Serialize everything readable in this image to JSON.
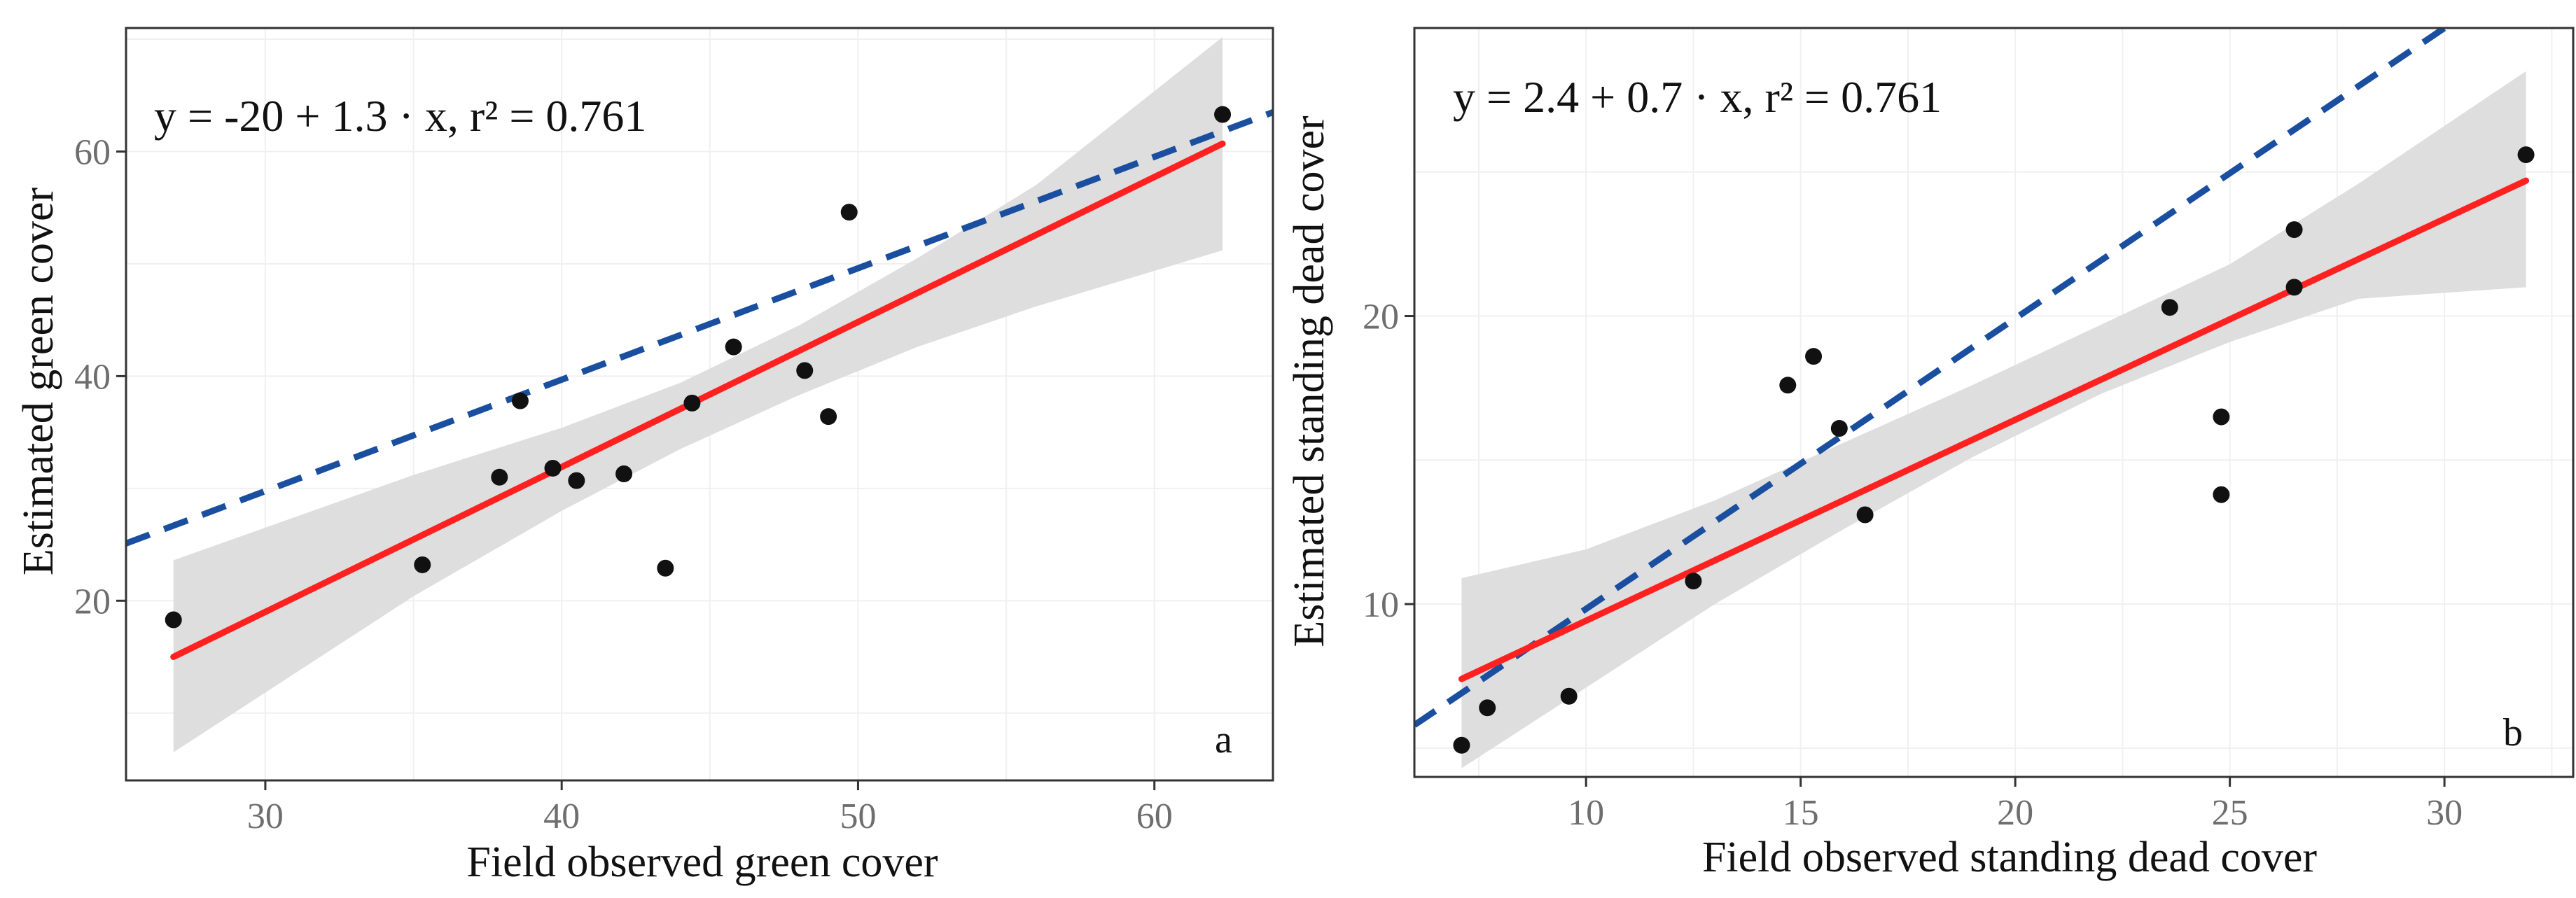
{
  "chart_data": [
    {
      "type": "scatter",
      "panel_label": "a",
      "equation": "y = -20 + 1.3 · x,  r² = 0.761",
      "xlabel": "Field observed green cover",
      "ylabel": "Estimated green cover",
      "xlim": [
        25.3,
        64.0
      ],
      "ylim": [
        4.0,
        71.0
      ],
      "xticks": [
        30,
        40,
        50,
        60
      ],
      "yticks": [
        20,
        40,
        60
      ],
      "grid": true,
      "points": [
        {
          "x": 26.9,
          "y": 18.3
        },
        {
          "x": 35.3,
          "y": 23.2
        },
        {
          "x": 37.9,
          "y": 31.0
        },
        {
          "x": 38.6,
          "y": 37.8
        },
        {
          "x": 39.7,
          "y": 31.8
        },
        {
          "x": 40.5,
          "y": 30.7
        },
        {
          "x": 42.1,
          "y": 31.3
        },
        {
          "x": 43.5,
          "y": 22.9
        },
        {
          "x": 44.4,
          "y": 37.6
        },
        {
          "x": 45.8,
          "y": 42.6
        },
        {
          "x": 48.2,
          "y": 40.5
        },
        {
          "x": 49.0,
          "y": 36.4
        },
        {
          "x": 49.7,
          "y": 54.6
        },
        {
          "x": 62.3,
          "y": 63.3
        }
      ],
      "fit_line": {
        "label": "regression fit",
        "color": "#ff2020",
        "x": [
          26.9,
          62.3
        ],
        "y": [
          15.0,
          60.7
        ]
      },
      "confidence_band": {
        "color": "#dcdcdc",
        "x": [
          26.9,
          35.0,
          40.0,
          44.0,
          48.0,
          52.0,
          56.0,
          62.3
        ],
        "lower": [
          6.5,
          20.4,
          28.0,
          33.5,
          38.3,
          42.6,
          46.2,
          51.2
        ],
        "upper": [
          23.6,
          31.2,
          35.4,
          39.4,
          44.5,
          50.5,
          57.0,
          70.2
        ]
      },
      "reference_line": {
        "label": "dashed line",
        "color": "#1a4fa0",
        "x": [
          25.3,
          64.0
        ],
        "y": [
          25.1,
          63.5
        ]
      }
    },
    {
      "type": "scatter",
      "panel_label": "b",
      "equation": "y = 2.4 + 0.7 · x,  r² = 0.761",
      "xlabel": "Field observed standing dead cover",
      "ylabel": "Estimated standing dead cover",
      "xlim": [
        6.0,
        33.0
      ],
      "ylim": [
        4.0,
        30.0
      ],
      "xticks": [
        10,
        15,
        20,
        25,
        30
      ],
      "yticks": [
        10,
        20
      ],
      "grid": true,
      "points": [
        {
          "x": 7.1,
          "y": 5.1
        },
        {
          "x": 7.7,
          "y": 6.4
        },
        {
          "x": 9.6,
          "y": 6.8
        },
        {
          "x": 12.5,
          "y": 10.8
        },
        {
          "x": 14.7,
          "y": 17.6
        },
        {
          "x": 15.3,
          "y": 18.6
        },
        {
          "x": 15.9,
          "y": 16.1
        },
        {
          "x": 16.5,
          "y": 13.1
        },
        {
          "x": 23.6,
          "y": 20.3
        },
        {
          "x": 24.8,
          "y": 16.5
        },
        {
          "x": 24.8,
          "y": 13.8
        },
        {
          "x": 26.5,
          "y": 21.0
        },
        {
          "x": 26.5,
          "y": 23.0
        },
        {
          "x": 31.9,
          "y": 25.6
        }
      ],
      "fit_line": {
        "label": "regression fit",
        "color": "#ff2020",
        "x": [
          7.1,
          31.9
        ],
        "y": [
          7.4,
          24.7
        ]
      },
      "confidence_band": {
        "color": "#dcdcdc",
        "x": [
          7.1,
          10.0,
          13.0,
          16.0,
          19.0,
          22.0,
          25.0,
          28.0,
          31.9
        ],
        "lower": [
          4.3,
          7.1,
          10.0,
          12.6,
          15.1,
          17.3,
          19.1,
          20.6,
          21.0
        ],
        "upper": [
          10.9,
          11.9,
          13.6,
          15.6,
          17.6,
          19.7,
          21.8,
          24.6,
          28.5
        ]
      },
      "reference_line": {
        "label": "dashed line",
        "color": "#1a4fa0",
        "x": [
          6.0,
          30.0
        ],
        "y": [
          5.8,
          30.0
        ]
      }
    }
  ]
}
